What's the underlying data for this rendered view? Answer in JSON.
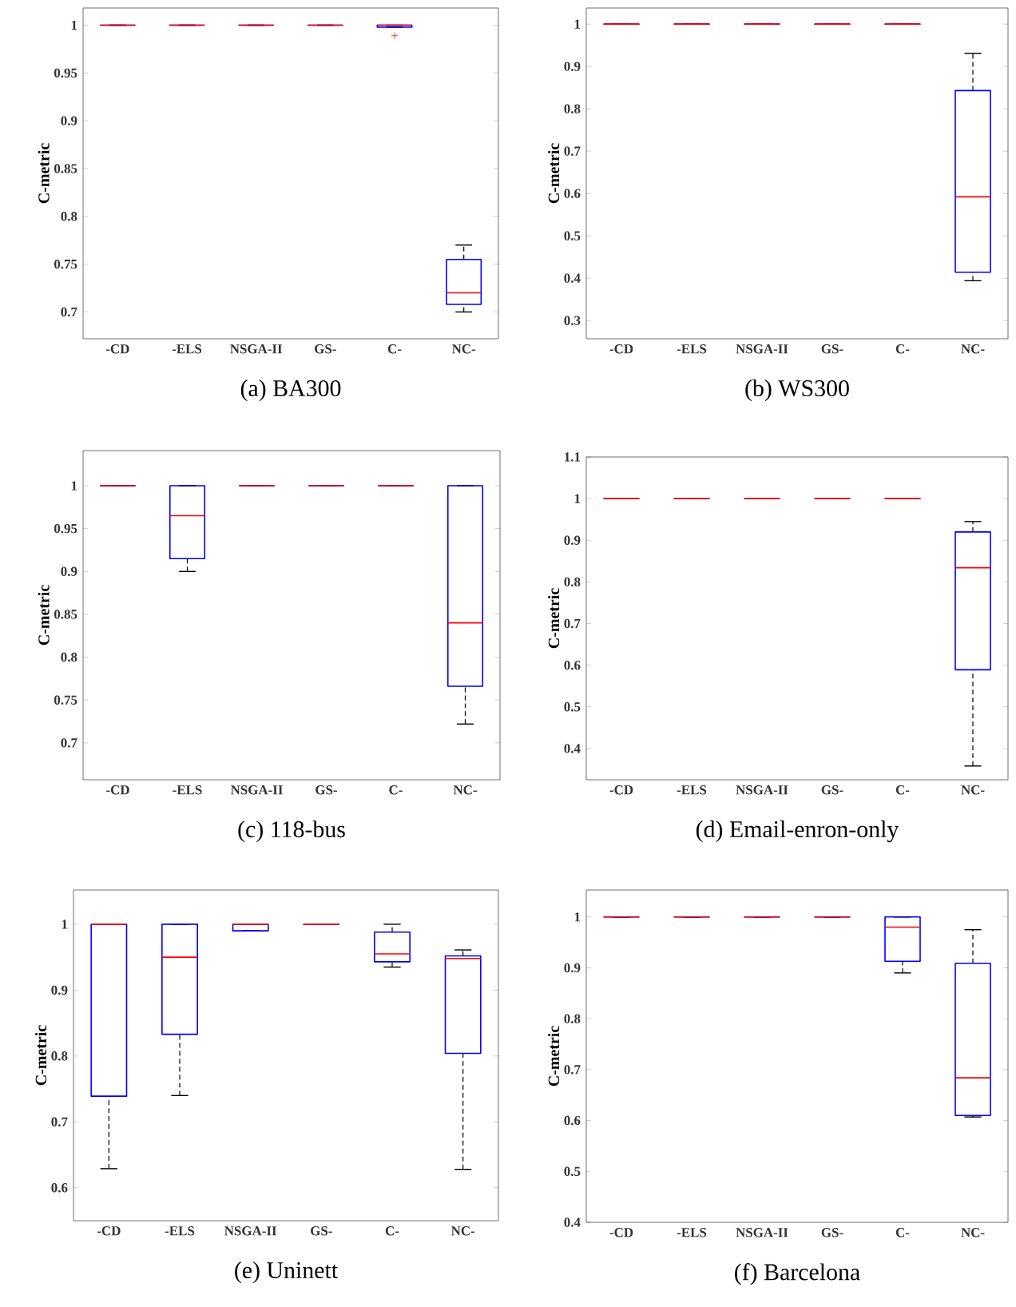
{
  "chart_data": [
    {
      "type": "box",
      "title": "(a)  BA300",
      "ylabel": "C-metric",
      "categories": [
        "-CD",
        "-ELS",
        "NSGA-II",
        "GS-",
        "C-",
        "NC-"
      ],
      "ylim": [
        0.672,
        1.018
      ],
      "yticks": [
        0.7,
        0.75,
        0.8,
        0.85,
        0.9,
        0.95,
        1
      ],
      "boxes": [
        {
          "low": 1,
          "q1": 1,
          "median": 1,
          "q3": 1,
          "high": 1
        },
        {
          "low": 1,
          "q1": 1,
          "median": 1,
          "q3": 1,
          "high": 1
        },
        {
          "low": 1,
          "q1": 1,
          "median": 1,
          "q3": 1,
          "high": 1
        },
        {
          "low": 1,
          "q1": 1,
          "median": 1,
          "q3": 1,
          "high": 1
        },
        {
          "low": 0.998,
          "q1": 0.998,
          "median": 1,
          "q3": 1,
          "high": 1,
          "outliers": [
            0.989
          ]
        },
        {
          "low": 0.7,
          "q1": 0.708,
          "median": 0.72,
          "q3": 0.755,
          "high": 0.77
        }
      ]
    },
    {
      "type": "box",
      "title": "(b)  WS300",
      "ylabel": "C-metric",
      "categories": [
        "-CD",
        "-ELS",
        "NSGA-II",
        "GS-",
        "C-",
        "NC-"
      ],
      "ylim": [
        0.257,
        1.038
      ],
      "yticks": [
        0.3,
        0.4,
        0.5,
        0.6,
        0.7,
        0.8,
        0.9,
        1
      ],
      "boxes": [
        {
          "low": 1,
          "q1": 1,
          "median": 1,
          "q3": 1,
          "high": 1
        },
        {
          "low": 1,
          "q1": 1,
          "median": 1,
          "q3": 1,
          "high": 1
        },
        {
          "low": 1,
          "q1": 1,
          "median": 1,
          "q3": 1,
          "high": 1
        },
        {
          "low": 1,
          "q1": 1,
          "median": 1,
          "q3": 1,
          "high": 1
        },
        {
          "low": 1,
          "q1": 1,
          "median": 1,
          "q3": 1,
          "high": 1
        },
        {
          "low": 0.394,
          "q1": 0.414,
          "median": 0.592,
          "q3": 0.843,
          "high": 0.931
        }
      ]
    },
    {
      "type": "box",
      "title": "(c)  118-bus",
      "ylabel": "C-metric",
      "categories": [
        "-CD",
        "-ELS",
        "NSGA-II",
        "GS-",
        "C-",
        "NC-"
      ],
      "ylim": [
        0.657,
        1.041
      ],
      "yticks": [
        0.7,
        0.75,
        0.8,
        0.85,
        0.9,
        0.95,
        1
      ],
      "boxes": [
        {
          "low": 1,
          "q1": 1,
          "median": 1,
          "q3": 1,
          "high": 1
        },
        {
          "low": 0.9,
          "q1": 0.915,
          "median": 0.965,
          "q3": 1,
          "high": 1
        },
        {
          "low": 1,
          "q1": 1,
          "median": 1,
          "q3": 1,
          "high": 1
        },
        {
          "low": 1,
          "q1": 1,
          "median": 1,
          "q3": 1,
          "high": 1
        },
        {
          "low": 1,
          "q1": 1,
          "median": 1,
          "q3": 1,
          "high": 1
        },
        {
          "low": 0.722,
          "q1": 0.766,
          "median": 0.84,
          "q3": 1,
          "high": 1
        }
      ]
    },
    {
      "type": "box",
      "title": "(d)  Email-enron-only",
      "ylabel": "C-metric",
      "categories": [
        "-CD",
        "-ELS",
        "NSGA-II",
        "GS-",
        "C-",
        "NC-"
      ],
      "ylim": [
        0.325,
        1.1
      ],
      "yticks": [
        0.4,
        0.5,
        0.6,
        0.7,
        0.8,
        0.9,
        1,
        1.1
      ],
      "boxes": [
        {
          "low": 1,
          "q1": 1,
          "median": 1,
          "q3": 1,
          "high": 1
        },
        {
          "low": 1,
          "q1": 1,
          "median": 1,
          "q3": 1,
          "high": 1
        },
        {
          "low": 1,
          "q1": 1,
          "median": 1,
          "q3": 1,
          "high": 1
        },
        {
          "low": 1,
          "q1": 1,
          "median": 1,
          "q3": 1,
          "high": 1
        },
        {
          "low": 1,
          "q1": 1,
          "median": 1,
          "q3": 1,
          "high": 1
        },
        {
          "low": 0.358,
          "q1": 0.589,
          "median": 0.834,
          "q3": 0.92,
          "high": 0.945
        }
      ]
    },
    {
      "type": "box",
      "title": "(e)  Uninett",
      "ylabel": "C-metric",
      "categories": [
        "-CD",
        "-ELS",
        "NSGA-II",
        "GS-",
        "C-",
        "NC-"
      ],
      "ylim": [
        0.55,
        1.052
      ],
      "yticks": [
        0.6,
        0.7,
        0.8,
        0.9,
        1
      ],
      "boxes": [
        {
          "low": 0.629,
          "q1": 0.739,
          "median": 1,
          "q3": 1,
          "high": 1
        },
        {
          "low": 0.74,
          "q1": 0.833,
          "median": 0.95,
          "q3": 1,
          "high": 1
        },
        {
          "low": 0.99,
          "q1": 0.99,
          "median": 1,
          "q3": 1,
          "high": 1
        },
        {
          "low": 1,
          "q1": 1,
          "median": 1,
          "q3": 1,
          "high": 1
        },
        {
          "low": 0.935,
          "q1": 0.943,
          "median": 0.955,
          "q3": 0.988,
          "high": 1
        },
        {
          "low": 0.628,
          "q1": 0.804,
          "median": 0.948,
          "q3": 0.952,
          "high": 0.961
        }
      ]
    },
    {
      "type": "box",
      "title": "(f)  Barcelona",
      "ylabel": "C-metric",
      "categories": [
        "-CD",
        "-ELS",
        "NSGA-II",
        "GS-",
        "C-",
        "NC-"
      ],
      "ylim": [
        0.4,
        1.053
      ],
      "yticks": [
        0.4,
        0.5,
        0.6,
        0.7,
        0.8,
        0.9,
        1
      ],
      "boxes": [
        {
          "low": 1,
          "q1": 1,
          "median": 1,
          "q3": 1,
          "high": 1
        },
        {
          "low": 1,
          "q1": 1,
          "median": 1,
          "q3": 1,
          "high": 1
        },
        {
          "low": 1,
          "q1": 1,
          "median": 1,
          "q3": 1,
          "high": 1
        },
        {
          "low": 1,
          "q1": 1,
          "median": 1,
          "q3": 1,
          "high": 1
        },
        {
          "low": 0.89,
          "q1": 0.913,
          "median": 0.98,
          "q3": 1,
          "high": 1
        },
        {
          "low": 0.607,
          "q1": 0.61,
          "median": 0.684,
          "q3": 0.909,
          "high": 0.975
        }
      ]
    }
  ]
}
